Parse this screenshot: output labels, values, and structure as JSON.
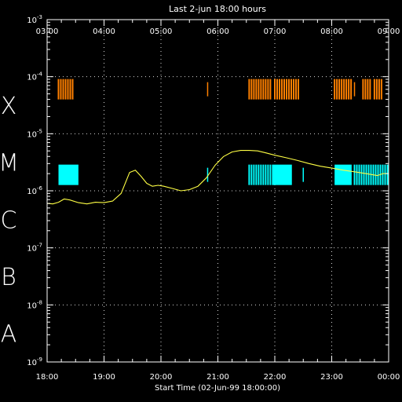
{
  "chart_data": {
    "type": "line",
    "title": "Last 2-jun 18:00 hours",
    "xlabel": "Start Time (02-Jun-99 18:00:00)",
    "ylabel": "",
    "xlim": [
      18,
      24
    ],
    "ylim_log10": [
      -9,
      -3
    ],
    "y_scale": "log",
    "grid": "dotted",
    "background": "#000000",
    "bottom_tick_labels": [
      "18:00",
      "19:00",
      "20:00",
      "21:00",
      "22:00",
      "23:00",
      "00:00"
    ],
    "top_tick_labels": [
      "03:00",
      "04:00",
      "05:00",
      "06:00",
      "07:00",
      "08:00",
      "09:00"
    ],
    "y_tick_labels": [
      {
        "exp": -3,
        "base": "10",
        "power": "-3"
      },
      {
        "exp": -4,
        "base": "10",
        "power": "-4"
      },
      {
        "exp": -5,
        "base": "10",
        "power": "-5"
      },
      {
        "exp": -6,
        "base": "10",
        "power": "-6"
      },
      {
        "exp": -7,
        "base": "10",
        "power": "-7"
      },
      {
        "exp": -8,
        "base": "10",
        "power": "-8"
      },
      {
        "exp": -9,
        "base": "10",
        "power": "-9"
      }
    ],
    "flare_classes": [
      {
        "letter": "X",
        "exp": -4
      },
      {
        "letter": "M",
        "exp": -5
      },
      {
        "letter": "C",
        "exp": -6
      },
      {
        "letter": "B",
        "exp": -7
      },
      {
        "letter": "A",
        "exp": -8
      }
    ],
    "series": [
      {
        "color": "#ffff44",
        "x": [
          18.0,
          18.1,
          18.2,
          18.3,
          18.4,
          18.55,
          18.7,
          18.85,
          19.0,
          19.15,
          19.3,
          19.45,
          19.55,
          19.65,
          19.75,
          19.85,
          19.95,
          20.05,
          20.2,
          20.35,
          20.5,
          20.65,
          20.8,
          20.95,
          21.1,
          21.25,
          21.4,
          21.55,
          21.7,
          21.85,
          22.0,
          22.2,
          22.4,
          22.6,
          22.8,
          23.0,
          23.2,
          23.4,
          23.6,
          23.8,
          23.9,
          24.0
        ],
        "y": [
          6e-07,
          5.9e-07,
          6.3e-07,
          7.2e-07,
          6.9e-07,
          6.2e-07,
          5.9e-07,
          6.3e-07,
          6.2e-07,
          6.6e-07,
          9e-07,
          2.1e-06,
          2.3e-06,
          1.8e-06,
          1.35e-06,
          1.2e-06,
          1.25e-06,
          1.2e-06,
          1.1e-06,
          1e-06,
          1.05e-06,
          1.2e-06,
          1.7e-06,
          2.8e-06,
          4e-06,
          4.8e-06,
          5.1e-06,
          5.1e-06,
          5e-06,
          4.6e-06,
          4.2e-06,
          3.8e-06,
          3.4e-06,
          3e-06,
          2.7e-06,
          2.5e-06,
          2.3e-06,
          2.15e-06,
          2e-06,
          1.85e-06,
          2e-06,
          2e-06
        ]
      }
    ],
    "event_rows": [
      {
        "color": "#ff8000",
        "level_exp": -4.22,
        "segments": [
          [
            18.2,
            18.47,
            "hatched"
          ],
          [
            20.82,
            20.84,
            "line"
          ],
          [
            21.55,
            21.95,
            "hatched"
          ],
          [
            22.0,
            22.45,
            "hatched"
          ],
          [
            23.05,
            23.35,
            "hatched"
          ],
          [
            23.4,
            23.45,
            "line"
          ],
          [
            23.55,
            23.7,
            "hatched"
          ],
          [
            23.75,
            23.9,
            "hatched"
          ]
        ]
      },
      {
        "color": "#00ffff",
        "level_exp": -5.72,
        "segments": [
          [
            18.2,
            18.55,
            "solid"
          ],
          [
            20.82,
            20.84,
            "line"
          ],
          [
            21.55,
            21.95,
            "hatched"
          ],
          [
            21.95,
            22.3,
            "solid"
          ],
          [
            22.5,
            22.53,
            "line"
          ],
          [
            23.05,
            23.35,
            "solid"
          ],
          [
            23.4,
            24.0,
            "hatched"
          ]
        ]
      }
    ]
  }
}
